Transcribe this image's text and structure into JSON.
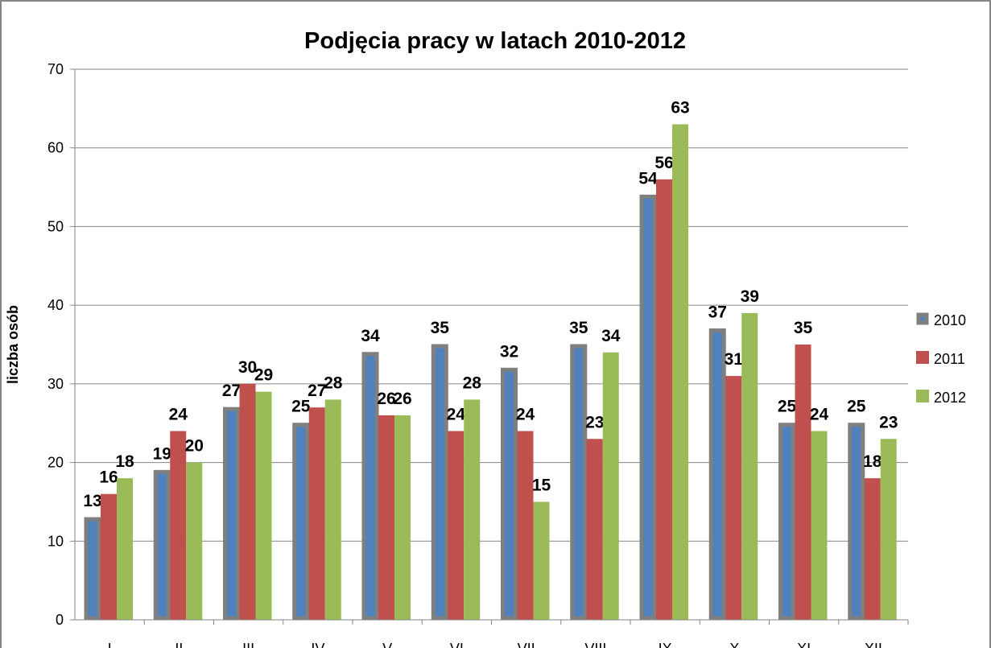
{
  "chart_data": {
    "type": "bar",
    "title": "Podjęcia pracy w latach 2010-2012",
    "y_label": "liczba osób",
    "categories": [
      "I",
      "II",
      "III",
      "IV",
      "V",
      "VI",
      "VII",
      "VIII",
      "IX",
      "X",
      "XI",
      "XII"
    ],
    "series": [
      {
        "name": "2010",
        "color": "#4f81bd",
        "border": "#7f7f7f",
        "values": [
          13,
          19,
          27,
          25,
          34,
          35,
          32,
          35,
          54,
          37,
          25,
          25
        ]
      },
      {
        "name": "2011",
        "color": "#c0504d",
        "values": [
          16,
          24,
          30,
          27,
          26,
          24,
          24,
          23,
          56,
          31,
          35,
          18
        ]
      },
      {
        "name": "2012",
        "color": "#9bbb59",
        "values": [
          18,
          20,
          29,
          28,
          26,
          28,
          15,
          34,
          63,
          39,
          24,
          23
        ]
      }
    ],
    "ylim": [
      0,
      70
    ],
    "yticks": [
      0,
      10,
      20,
      30,
      40,
      50,
      60,
      70
    ],
    "grid": true,
    "legend": "right"
  }
}
